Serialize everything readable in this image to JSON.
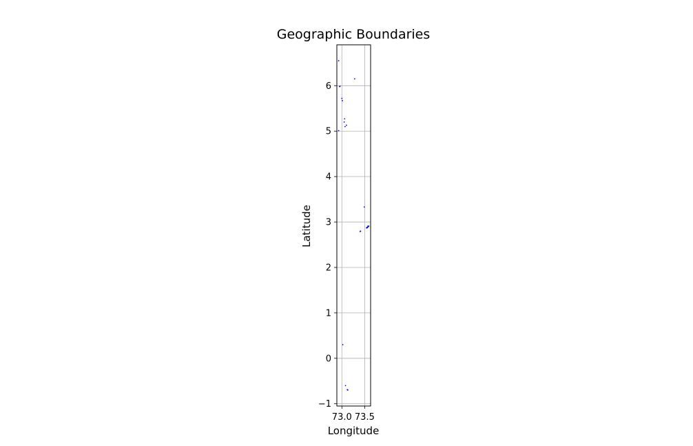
{
  "chart_data": {
    "type": "scatter",
    "title": "Geographic Boundaries",
    "xlabel": "Longitude",
    "ylabel": "Latitude",
    "xlim": [
      72.89,
      73.63
    ],
    "ylim": [
      -1.05,
      6.9
    ],
    "xticks": [
      73.0,
      73.5
    ],
    "xtick_labels": [
      "73.0",
      "73.5"
    ],
    "yticks": [
      -1,
      0,
      1,
      2,
      3,
      4,
      5,
      6
    ],
    "ytick_labels": [
      "−1",
      "0",
      "1",
      "2",
      "3",
      "4",
      "5",
      "6"
    ],
    "grid": true,
    "series": [
      {
        "color": "#0000ff",
        "points": [
          [
            73.58,
            2.9
          ],
          [
            73.57,
            2.89
          ],
          [
            73.56,
            2.88
          ],
          [
            73.55,
            2.87
          ],
          [
            73.54,
            2.87
          ],
          [
            73.57,
            2.91
          ],
          [
            73.59,
            2.91
          ],
          [
            73.55,
            2.88
          ],
          [
            73.41,
            2.8
          ],
          [
            73.4,
            2.79
          ],
          [
            73.08,
            -0.6
          ],
          [
            73.12,
            -0.69
          ],
          [
            73.13,
            -0.7
          ],
          [
            72.95,
            5.98
          ],
          [
            72.96,
            5.99
          ],
          [
            73.0,
            5.72
          ],
          [
            73.01,
            5.67
          ],
          [
            73.05,
            5.2
          ],
          [
            73.07,
            5.1
          ],
          [
            73.1,
            5.13
          ],
          [
            73.06,
            5.27
          ],
          [
            73.28,
            6.15
          ],
          [
            72.93,
            6.55
          ],
          [
            72.93,
            5.01
          ],
          [
            73.02,
            0.3
          ],
          [
            73.49,
            3.33
          ]
        ]
      }
    ]
  }
}
